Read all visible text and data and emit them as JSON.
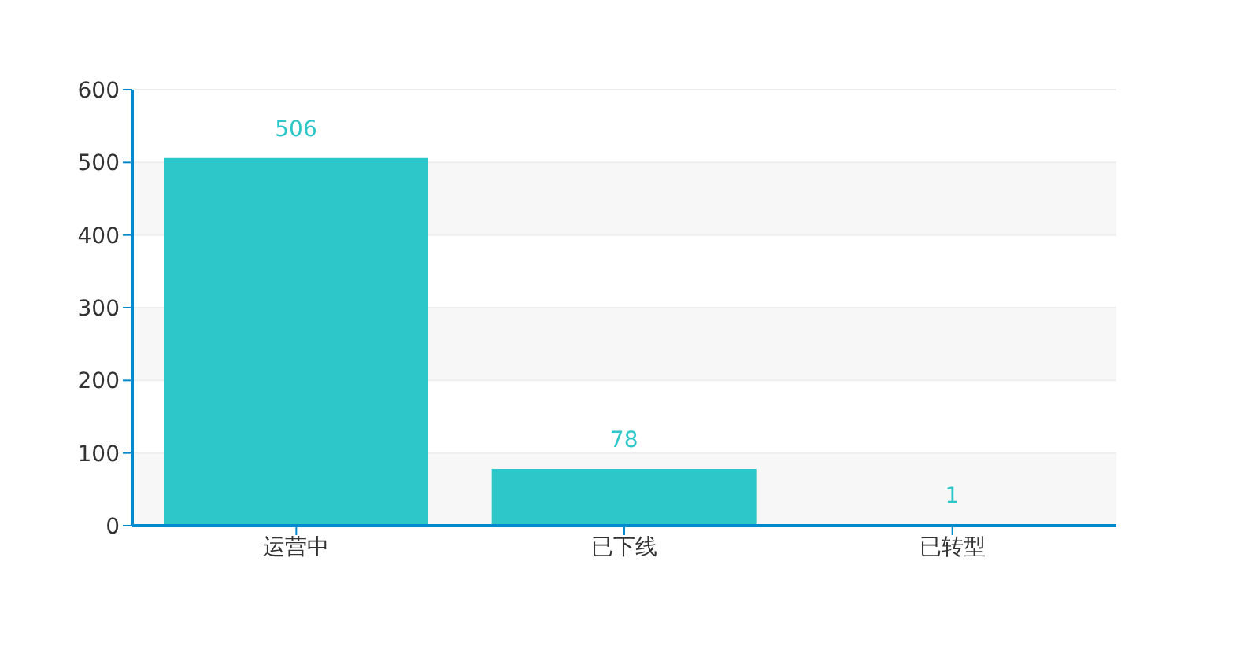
{
  "chart_data": {
    "type": "bar",
    "categories": [
      "运营中",
      "已下线",
      "已转型"
    ],
    "values": [
      506,
      78,
      1
    ],
    "color": "#2ec7c9",
    "ylim": [
      0,
      600
    ],
    "yticks": [
      0,
      100,
      200,
      300,
      400,
      500,
      600
    ],
    "grid": "y",
    "data_labels": true
  }
}
